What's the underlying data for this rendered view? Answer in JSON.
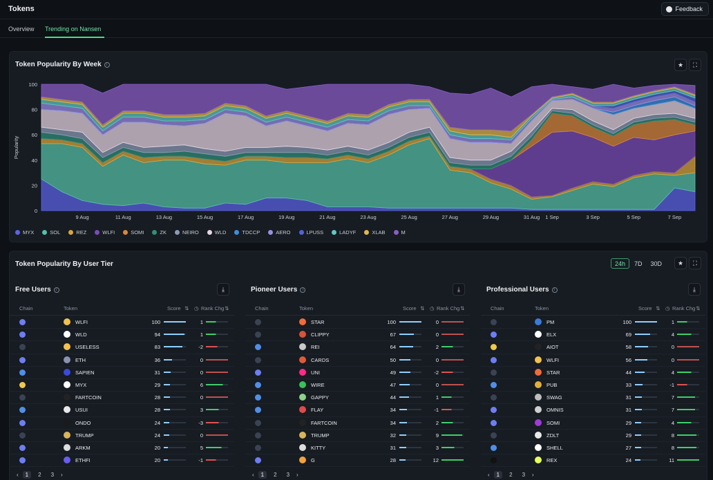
{
  "header": {
    "title": "Tokens",
    "feedback_label": "Feedback"
  },
  "tabs": [
    {
      "label": "Overview"
    },
    {
      "label": "Trending on Nansen"
    }
  ],
  "popularity_week": {
    "title": "Token Popularity By Week",
    "chart_data": {
      "type": "area",
      "stacked": true,
      "title": "Token Popularity By Week",
      "ylabel": "Popularity",
      "ylim": [
        0,
        100
      ],
      "yticks": [
        0,
        20,
        40,
        60,
        80,
        100
      ],
      "xticks": [
        "9 Aug",
        "11 Aug",
        "13 Aug",
        "15 Aug",
        "17 Aug",
        "19 Aug",
        "21 Aug",
        "23 Aug",
        "25 Aug",
        "27 Aug",
        "29 Aug",
        "31 Aug",
        "1 Sep",
        "3 Sep",
        "5 Sep",
        "7 Sep"
      ],
      "x": [
        "7 Aug",
        "8 Aug",
        "9 Aug",
        "10 Aug",
        "11 Aug",
        "12 Aug",
        "13 Aug",
        "14 Aug",
        "15 Aug",
        "16 Aug",
        "17 Aug",
        "18 Aug",
        "19 Aug",
        "20 Aug",
        "21 Aug",
        "22 Aug",
        "23 Aug",
        "24 Aug",
        "25 Aug",
        "26 Aug",
        "27 Aug",
        "28 Aug",
        "29 Aug",
        "30 Aug",
        "31 Aug",
        "1 Sep",
        "2 Sep",
        "3 Sep",
        "4 Sep",
        "5 Sep",
        "6 Sep",
        "7 Sep",
        "8 Sep"
      ],
      "series": [
        {
          "name": "MYX",
          "values": [
            25,
            15,
            8,
            5,
            4,
            6,
            3,
            2,
            2,
            6,
            5,
            10,
            10,
            8,
            3,
            3,
            3,
            2,
            2,
            2,
            2,
            2,
            2,
            2,
            1,
            1,
            1,
            1,
            1,
            1,
            1,
            18,
            15
          ]
        },
        {
          "name": "SOL",
          "values": [
            28,
            38,
            42,
            30,
            40,
            32,
            37,
            38,
            35,
            30,
            35,
            30,
            28,
            30,
            35,
            38,
            35,
            42,
            50,
            55,
            30,
            28,
            20,
            15,
            8,
            10,
            15,
            20,
            18,
            25,
            28,
            10,
            15
          ]
        },
        {
          "name": "REZ",
          "values": [
            4,
            3,
            3,
            3,
            3,
            4,
            3,
            3,
            4,
            3,
            3,
            3,
            4,
            4,
            3,
            3,
            3,
            3,
            3,
            2,
            3,
            3,
            3,
            3,
            2,
            1,
            2,
            2,
            2,
            2,
            2,
            2,
            13
          ]
        },
        {
          "name": "WLFI",
          "values": [
            0,
            0,
            0,
            0,
            0,
            0,
            0,
            0,
            0,
            0,
            0,
            0,
            0,
            0,
            0,
            0,
            0,
            0,
            0,
            0,
            0,
            0,
            8,
            20,
            40,
            50,
            45,
            35,
            30,
            30,
            25,
            30,
            20
          ]
        },
        {
          "name": "SOMI",
          "values": [
            0,
            0,
            0,
            0,
            0,
            0,
            0,
            0,
            0,
            0,
            0,
            0,
            0,
            0,
            0,
            0,
            0,
            0,
            0,
            0,
            0,
            0,
            0,
            0,
            5,
            15,
            12,
            8,
            8,
            10,
            15,
            12,
            5
          ]
        },
        {
          "name": "ZK",
          "values": [
            5,
            4,
            4,
            4,
            3,
            4,
            3,
            4,
            4,
            4,
            3,
            3,
            4,
            4,
            3,
            3,
            3,
            3,
            3,
            3,
            3,
            3,
            3,
            3,
            3,
            2,
            2,
            2,
            2,
            2,
            2,
            2,
            2
          ]
        },
        {
          "name": "NEIRO",
          "values": [
            4,
            4,
            5,
            4,
            4,
            4,
            5,
            5,
            4,
            4,
            4,
            4,
            5,
            4,
            4,
            4,
            4,
            4,
            4,
            4,
            4,
            4,
            4,
            4,
            4,
            2,
            3,
            3,
            3,
            3,
            3,
            3,
            3
          ]
        },
        {
          "name": "WLD",
          "values": [
            14,
            15,
            15,
            14,
            16,
            20,
            17,
            15,
            20,
            30,
            25,
            17,
            20,
            17,
            15,
            18,
            20,
            22,
            18,
            15,
            15,
            14,
            14,
            6,
            8,
            6,
            8,
            10,
            12,
            8,
            8,
            10,
            8
          ]
        },
        {
          "name": "TDCCP",
          "values": [
            0,
            0,
            0,
            0,
            0,
            0,
            0,
            0,
            0,
            0,
            0,
            0,
            0,
            0,
            0,
            0,
            0,
            0,
            0,
            0,
            0,
            0,
            0,
            0,
            0,
            0,
            0,
            0,
            2,
            2,
            3,
            3,
            2
          ]
        },
        {
          "name": "AERO",
          "values": [
            5,
            4,
            4,
            3,
            4,
            4,
            3,
            4,
            3,
            3,
            3,
            3,
            3,
            3,
            3,
            3,
            3,
            3,
            3,
            2,
            3,
            3,
            3,
            3,
            2,
            1,
            2,
            2,
            3,
            3,
            3,
            3,
            3
          ]
        },
        {
          "name": "LPUSS",
          "values": [
            0,
            0,
            0,
            0,
            0,
            0,
            0,
            0,
            0,
            0,
            0,
            0,
            0,
            0,
            0,
            0,
            0,
            0,
            0,
            0,
            0,
            0,
            0,
            0,
            0,
            0,
            0,
            0,
            2,
            2,
            2,
            2,
            3
          ]
        },
        {
          "name": "LADYF",
          "values": [
            3,
            3,
            3,
            3,
            3,
            3,
            3,
            3,
            3,
            3,
            3,
            3,
            3,
            3,
            3,
            3,
            3,
            3,
            3,
            3,
            3,
            3,
            3,
            2,
            2,
            1,
            2,
            2,
            2,
            2,
            2,
            2,
            2
          ]
        },
        {
          "name": "XLAB",
          "values": [
            2,
            2,
            2,
            2,
            2,
            2,
            2,
            2,
            2,
            2,
            2,
            2,
            2,
            2,
            2,
            2,
            2,
            2,
            2,
            2,
            3,
            4,
            4,
            5,
            1,
            1,
            1,
            1,
            1,
            1,
            1,
            1,
            1
          ]
        },
        {
          "name": "M",
          "values": [
            10,
            12,
            14,
            25,
            21,
            21,
            24,
            24,
            23,
            15,
            17,
            25,
            17,
            23,
            29,
            25,
            24,
            17,
            13,
            10,
            27,
            28,
            33,
            27,
            22,
            10,
            5,
            10,
            14,
            6,
            4,
            3,
            7
          ]
        }
      ]
    }
  },
  "legend": [
    {
      "name": "MYX",
      "color": "#5b63e8"
    },
    {
      "name": "SOL",
      "color": "#55c1a8"
    },
    {
      "name": "REZ",
      "color": "#d9a53b"
    },
    {
      "name": "WLFI",
      "color": "#7a4bb8"
    },
    {
      "name": "SOMI",
      "color": "#d9873b"
    },
    {
      "name": "ZK",
      "color": "#2f8f7a"
    },
    {
      "name": "NEIRO",
      "color": "#8c9bb5"
    },
    {
      "name": "WLD",
      "color": "#e6d6e3"
    },
    {
      "name": "TDCCP",
      "color": "#3b8fe0"
    },
    {
      "name": "AERO",
      "color": "#9a8ee6"
    },
    {
      "name": "LPUSS",
      "color": "#5262d6"
    },
    {
      "name": "LADYF",
      "color": "#5fc9c0"
    },
    {
      "name": "XLAB",
      "color": "#e3b54a"
    },
    {
      "name": "M",
      "color": "#8a5dc8"
    }
  ],
  "user_tier": {
    "title": "Token Popularity By User Tier",
    "time_options": [
      "24h",
      "7D",
      "30D"
    ],
    "selected_time": "24h",
    "columns": {
      "chain": "Chain",
      "token": "Token",
      "score": "Score",
      "rank": "Rank Chg"
    },
    "pages": [
      "1",
      "2",
      "3"
    ],
    "prev": "‹",
    "next": "›",
    "tiers": [
      {
        "title": "Free Users",
        "rows": [
          {
            "chain": "eth",
            "token": "WLFI",
            "score": "100",
            "rank": "1",
            "icon_color": "#f2c14e"
          },
          {
            "chain": "eth",
            "token": "WLD",
            "score": "94",
            "rank": "1",
            "icon_color": "#ffffff"
          },
          {
            "chain": "sol",
            "token": "USELESS",
            "score": "83",
            "rank": "-2",
            "icon_color": "#f2c14e"
          },
          {
            "chain": "eth",
            "token": "ETH",
            "score": "36",
            "rank": "0",
            "icon_color": "#8a92b2"
          },
          {
            "chain": "base",
            "token": "SAPIEN",
            "score": "31",
            "rank": "0",
            "icon_color": "#3b4ad8"
          },
          {
            "chain": "bnb",
            "token": "MYX",
            "score": "29",
            "rank": "6",
            "icon_color": "#ffffff"
          },
          {
            "chain": "sol",
            "token": "FARTCOIN",
            "score": "28",
            "rank": "0",
            "icon_color": "#222222"
          },
          {
            "chain": "base",
            "token": "USUI",
            "score": "28",
            "rank": "3",
            "icon_color": "#e8e8e8"
          },
          {
            "chain": "eth",
            "token": "ONDO",
            "score": "24",
            "rank": "-3",
            "icon_color": "#1a1a1a"
          },
          {
            "chain": "sol",
            "token": "TRUMP",
            "score": "24",
            "rank": "0",
            "icon_color": "#d9b45a"
          },
          {
            "chain": "eth",
            "token": "ARKM",
            "score": "20",
            "rank": "5",
            "icon_color": "#dddddd"
          },
          {
            "chain": "eth",
            "token": "ETHFI",
            "score": "20",
            "rank": "-1",
            "icon_color": "#6a5cf0"
          }
        ]
      },
      {
        "title": "Pioneer Users",
        "rows": [
          {
            "chain": "sol",
            "token": "STAR",
            "score": "100",
            "rank": "0",
            "icon_color": "#f26b3a"
          },
          {
            "chain": "sol",
            "token": "CLIPPY",
            "score": "67",
            "rank": "0",
            "icon_color": "#d9533a"
          },
          {
            "chain": "base",
            "token": "REI",
            "score": "64",
            "rank": "2",
            "icon_color": "#c9c9c9"
          },
          {
            "chain": "sol",
            "token": "CARDS",
            "score": "50",
            "rank": "0",
            "icon_color": "#e05a3a"
          },
          {
            "chain": "eth",
            "token": "UNI",
            "score": "49",
            "rank": "-2",
            "icon_color": "#ff2a8a"
          },
          {
            "chain": "base",
            "token": "WIRE",
            "score": "47",
            "rank": "0",
            "icon_color": "#3bbf5a"
          },
          {
            "chain": "base",
            "token": "GAPPY",
            "score": "44",
            "rank": "1",
            "icon_color": "#8fd08a"
          },
          {
            "chain": "base",
            "token": "FLAY",
            "score": "34",
            "rank": "-1",
            "icon_color": "#e04a4a"
          },
          {
            "chain": "sol",
            "token": "FARTCOIN",
            "score": "34",
            "rank": "2",
            "icon_color": "#222222"
          },
          {
            "chain": "sol",
            "token": "TRUMP",
            "score": "32",
            "rank": "9",
            "icon_color": "#d9b45a"
          },
          {
            "chain": "sol",
            "token": "KITTY",
            "score": "31",
            "rank": "3",
            "icon_color": "#dddddd"
          },
          {
            "chain": "eth",
            "token": "G",
            "score": "28",
            "rank": "12",
            "icon_color": "#f2a23a"
          }
        ]
      },
      {
        "title": "Professional Users",
        "rows": [
          {
            "chain": "sol",
            "token": "PM",
            "score": "100",
            "rank": "1",
            "icon_color": "#3b7bd8"
          },
          {
            "chain": "eth",
            "token": "ELX",
            "score": "69",
            "rank": "4",
            "icon_color": "#ffffff"
          },
          {
            "chain": "bnb",
            "token": "AIOT",
            "score": "58",
            "rank": "0",
            "icon_color": "#222222"
          },
          {
            "chain": "eth",
            "token": "WLFI",
            "score": "56",
            "rank": "0",
            "icon_color": "#f2c14e"
          },
          {
            "chain": "sol",
            "token": "STAR",
            "score": "44",
            "rank": "4",
            "icon_color": "#f26b3a"
          },
          {
            "chain": "base",
            "token": "PUB",
            "score": "33",
            "rank": "-1",
            "icon_color": "#e0b03a"
          },
          {
            "chain": "sol",
            "token": "SWAG",
            "score": "31",
            "rank": "7",
            "icon_color": "#bdbdbd"
          },
          {
            "chain": "eth",
            "token": "OMNIS",
            "score": "31",
            "rank": "7",
            "icon_color": "#cfcfcf"
          },
          {
            "chain": "eth",
            "token": "SOMI",
            "score": "29",
            "rank": "4",
            "icon_color": "#a03ad8"
          },
          {
            "chain": "sol",
            "token": "ZDLT",
            "score": "29",
            "rank": "8",
            "icon_color": "#e8e8e8"
          },
          {
            "chain": "base",
            "token": "SHELL",
            "score": "27",
            "rank": "8",
            "icon_color": "#ffffff"
          },
          {
            "chain": "hype",
            "token": "REX",
            "score": "24",
            "rank": "11",
            "icon_color": "#e6ff5a"
          }
        ]
      }
    ]
  },
  "icons": [
    "feedback-icon",
    "info-icon",
    "star-icon",
    "expand-icon",
    "download-icon",
    "sort-icon",
    "chain-icon"
  ]
}
